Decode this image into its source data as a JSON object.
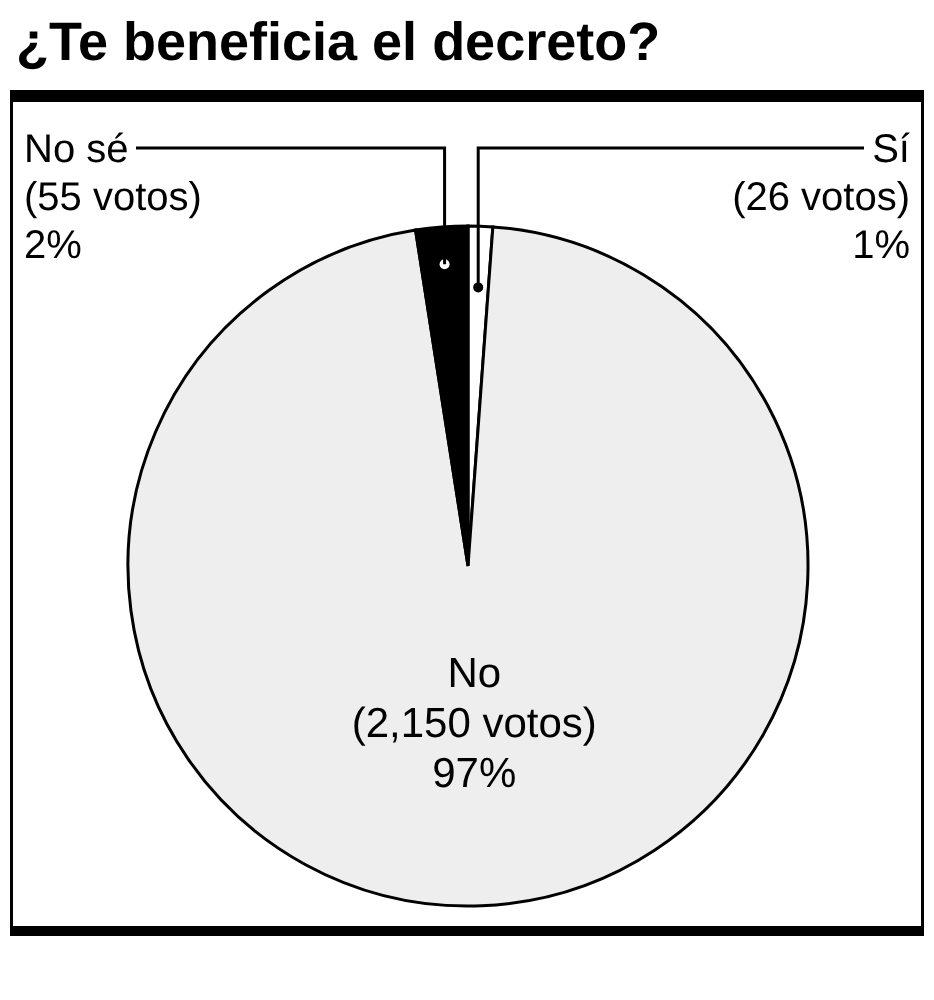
{
  "chart_data": {
    "type": "pie",
    "title": "¿Te beneficia el decreto?",
    "categories": [
      "Sí",
      "No",
      "No sé"
    ],
    "values": [
      26,
      2150,
      55
    ],
    "value_labels": [
      "(26 votos) 1%",
      "(2,150 votos) 97%",
      "(55 votos) 2%"
    ],
    "colors": [
      "#ffffff",
      "#eeeeee",
      "#000000"
    ]
  }
}
